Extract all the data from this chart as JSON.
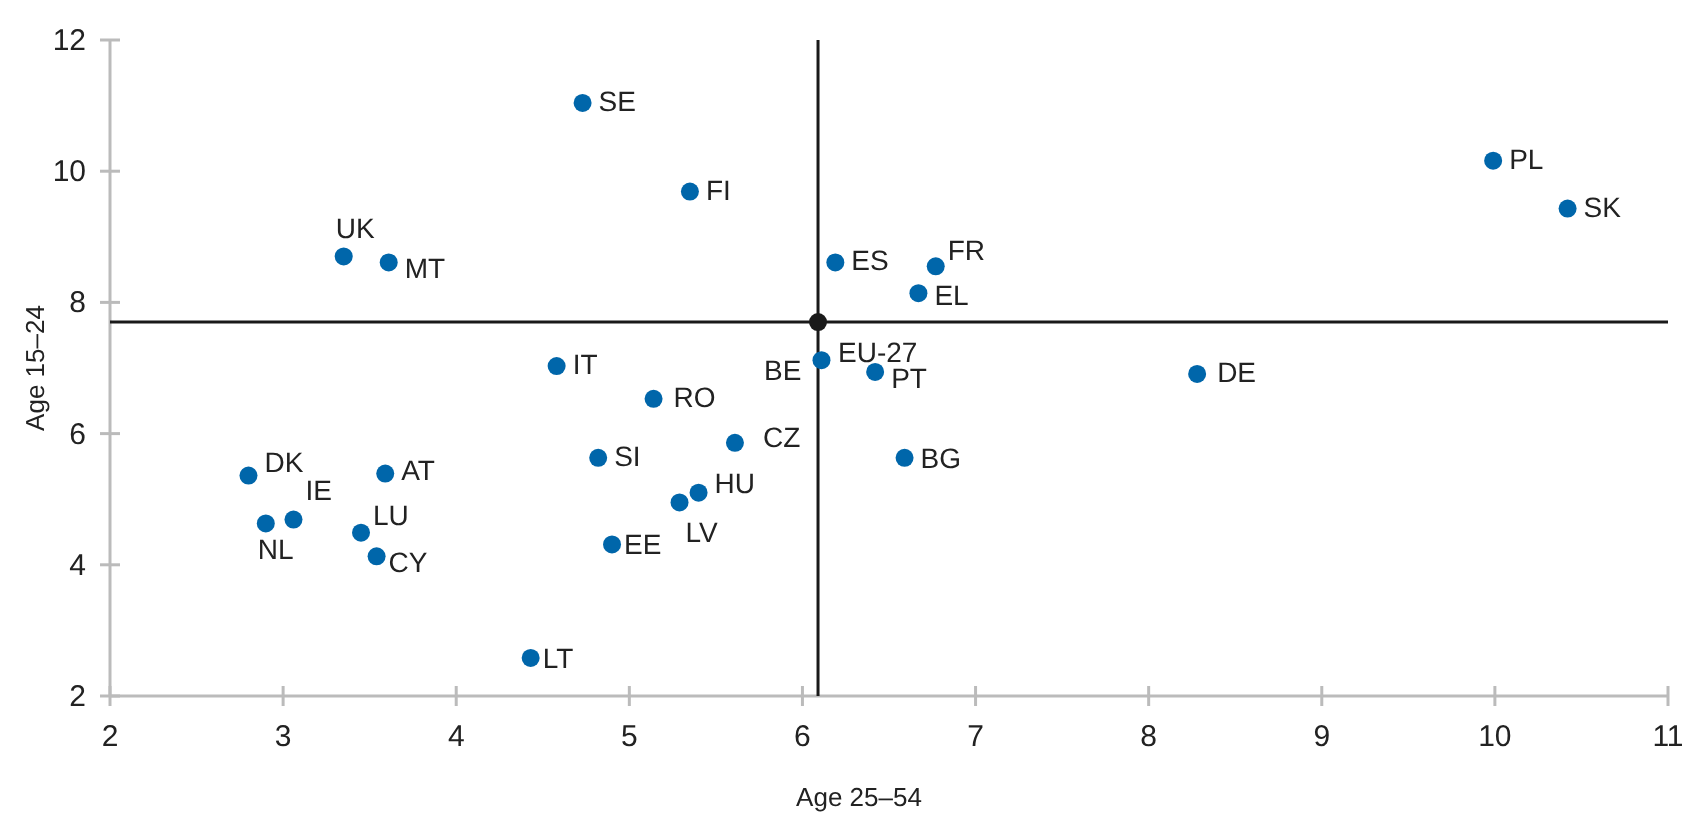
{
  "chart_data": {
    "type": "scatter",
    "xlabel": "Age 25–54",
    "ylabel": "Age 15–24",
    "xlim": [
      2,
      11
    ],
    "xticks": [
      2,
      3,
      4,
      5,
      6,
      7,
      8,
      9,
      10,
      11
    ],
    "ylim": [
      2,
      12
    ],
    "yticks": [
      2,
      4,
      6,
      8,
      10,
      12
    ],
    "grid": false,
    "marker": "circle",
    "series": [
      {
        "color": "#0066aa",
        "x": [
          4.73,
          5.35,
          3.35,
          3.61,
          6.19,
          6.77,
          6.67,
          9.99,
          10.42,
          6.11,
          6.42,
          8.28,
          4.58,
          5.14,
          5.61,
          4.82,
          6.59,
          2.8,
          3.59,
          3.06,
          2.9,
          3.45,
          3.54,
          5.4,
          5.29,
          4.9,
          4.43
        ],
        "values": [
          11.04,
          9.69,
          8.7,
          8.61,
          8.61,
          8.55,
          8.14,
          10.16,
          9.43,
          7.12,
          6.94,
          6.91,
          7.03,
          6.53,
          5.86,
          5.63,
          5.63,
          5.36,
          5.39,
          4.69,
          4.63,
          4.49,
          4.13,
          5.1,
          4.95,
          4.31,
          2.58
        ]
      },
      {
        "name": "EU-27",
        "color": "#1a1a1a",
        "x": [
          6.09
        ],
        "values": [
          7.7
        ]
      }
    ],
    "ref_lines": [
      {
        "axis": "x",
        "value": 6.09,
        "color": "#1a1a1a"
      },
      {
        "axis": "y",
        "value": 7.7,
        "color": "#1a1a1a"
      }
    ],
    "annotations": [
      {
        "text": "SE",
        "x": 4.73,
        "y": 11.04
      },
      {
        "text": "FI",
        "x": 5.35,
        "y": 9.69
      },
      {
        "text": "UK",
        "x": 3.35,
        "y": 8.7
      },
      {
        "text": "MT",
        "x": 3.61,
        "y": 8.61
      },
      {
        "text": "ES",
        "x": 6.19,
        "y": 8.61
      },
      {
        "text": "FR",
        "x": 6.77,
        "y": 8.55
      },
      {
        "text": "EL",
        "x": 6.67,
        "y": 8.14
      },
      {
        "text": "PL",
        "x": 9.99,
        "y": 10.16
      },
      {
        "text": "SK",
        "x": 10.42,
        "y": 9.43
      },
      {
        "text": "BE",
        "x": 6.11,
        "y": 7.12
      },
      {
        "text": "PT",
        "x": 6.42,
        "y": 6.94
      },
      {
        "text": "DE",
        "x": 8.28,
        "y": 6.91
      },
      {
        "text": "IT",
        "x": 4.58,
        "y": 7.03
      },
      {
        "text": "RO",
        "x": 5.14,
        "y": 6.53
      },
      {
        "text": "CZ",
        "x": 5.61,
        "y": 5.86
      },
      {
        "text": "SI",
        "x": 4.82,
        "y": 5.63
      },
      {
        "text": "BG",
        "x": 6.59,
        "y": 5.63
      },
      {
        "text": "DK",
        "x": 2.8,
        "y": 5.36
      },
      {
        "text": "AT",
        "x": 3.59,
        "y": 5.39
      },
      {
        "text": "IE",
        "x": 3.06,
        "y": 4.69
      },
      {
        "text": "NL",
        "x": 2.9,
        "y": 4.63
      },
      {
        "text": "LU",
        "x": 3.45,
        "y": 4.49
      },
      {
        "text": "CY",
        "x": 3.54,
        "y": 4.13
      },
      {
        "text": "HU",
        "x": 5.4,
        "y": 5.1
      },
      {
        "text": "LV",
        "x": 5.29,
        "y": 4.95
      },
      {
        "text": "EE",
        "x": 4.9,
        "y": 4.31
      },
      {
        "text": "LT",
        "x": 4.43,
        "y": 2.58
      }
    ]
  }
}
